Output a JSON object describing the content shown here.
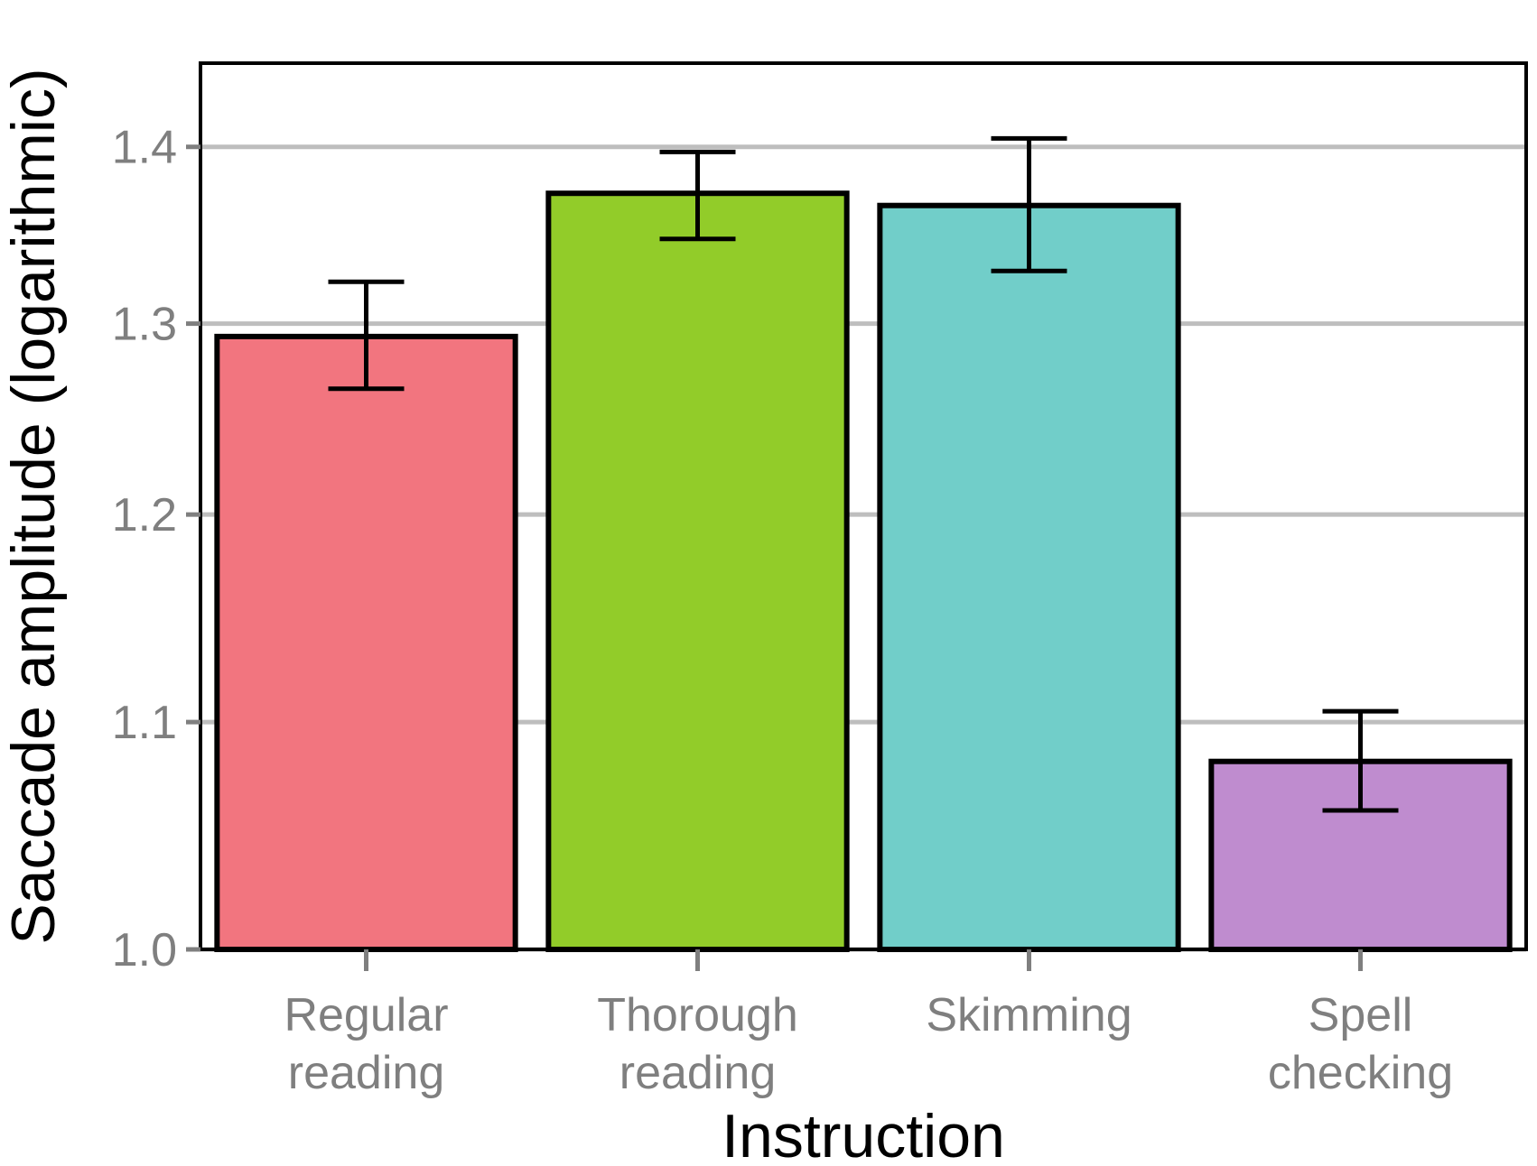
{
  "chart_data": {
    "type": "bar",
    "title": "",
    "xlabel": "Instruction",
    "ylabel": "Saccade amplitude (logarithmic)",
    "ylim": [
      1.0,
      1.45
    ],
    "y_scale": "log",
    "y_ticks": [
      1.0,
      1.1,
      1.2,
      1.3,
      1.4
    ],
    "y_tick_labels": [
      "1.0",
      "1.1",
      "1.2",
      "1.3",
      "1.4"
    ],
    "categories": [
      [
        "Regular",
        "reading"
      ],
      [
        "Thorough",
        "reading"
      ],
      [
        "Skimming"
      ],
      [
        "Spell",
        "checking"
      ]
    ],
    "values": [
      1.293,
      1.373,
      1.366,
      1.082
    ],
    "error_low": [
      1.265,
      1.347,
      1.329,
      1.06
    ],
    "error_high": [
      1.323,
      1.397,
      1.405,
      1.105
    ],
    "colors": [
      "#f2757f",
      "#92cc29",
      "#71cec9",
      "#bf8ccf"
    ],
    "grid": "horizontal",
    "gridline_color": "#bebebe",
    "legend": "none"
  }
}
